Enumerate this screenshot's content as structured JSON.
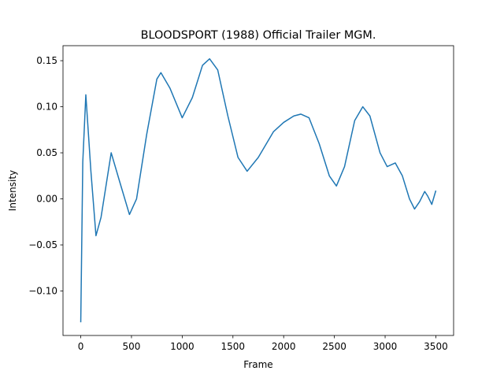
{
  "chart_data": {
    "type": "line",
    "title": "BLOODSPORT (1988)  Official Trailer  MGM.",
    "xlabel": "Frame",
    "ylabel": "Intensity",
    "x": [
      0,
      20,
      50,
      100,
      150,
      200,
      300,
      380,
      480,
      550,
      650,
      750,
      790,
      880,
      1000,
      1100,
      1200,
      1270,
      1350,
      1450,
      1550,
      1640,
      1750,
      1900,
      2000,
      2100,
      2170,
      2250,
      2350,
      2450,
      2520,
      2600,
      2700,
      2780,
      2850,
      2950,
      3020,
      3100,
      3170,
      3240,
      3290,
      3340,
      3390,
      3420,
      3460,
      3500
    ],
    "series": [
      {
        "color": "#1f77b4",
        "values": [
          -0.134,
          0.04,
          0.113,
          0.03,
          -0.04,
          -0.02,
          0.05,
          0.02,
          -0.017,
          0.0,
          0.07,
          0.13,
          0.137,
          0.12,
          0.088,
          0.11,
          0.145,
          0.152,
          0.14,
          0.09,
          0.045,
          0.03,
          0.045,
          0.073,
          0.083,
          0.09,
          0.092,
          0.088,
          0.06,
          0.025,
          0.014,
          0.035,
          0.085,
          0.1,
          0.09,
          0.05,
          0.035,
          0.039,
          0.025,
          0.0,
          -0.011,
          -0.003,
          0.008,
          0.003,
          -0.006,
          0.009
        ]
      }
    ],
    "xlim": [
      -175,
      3675
    ],
    "ylim": [
      -0.1483,
      0.1663
    ],
    "xticks": [
      0,
      500,
      1000,
      1500,
      2000,
      2500,
      3000,
      3500
    ],
    "yticks": [
      {
        "value": -0.1,
        "label": "−0.10"
      },
      {
        "value": -0.05,
        "label": "−0.05"
      },
      {
        "value": 0,
        "label": "0.00"
      },
      {
        "value": 0.05,
        "label": "0.05"
      },
      {
        "value": 0.1,
        "label": "0.10"
      },
      {
        "value": 0.15,
        "label": "0.15"
      }
    ],
    "grid": false
  }
}
